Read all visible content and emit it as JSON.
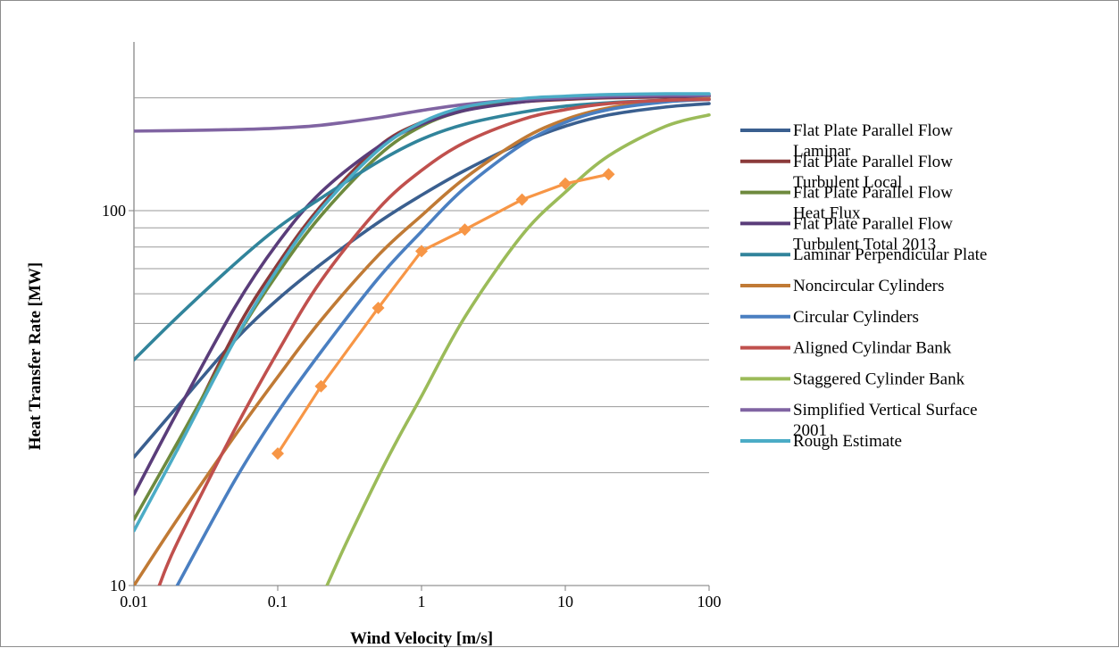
{
  "chart_data": {
    "type": "line",
    "title": "",
    "xlabel": "Wind Velocity [m/s]",
    "ylabel": "Heat Transfer Rate [MW]",
    "x_scale": "log",
    "y_scale": "log",
    "xlim": [
      0.01,
      100
    ],
    "ylim": [
      10,
      250
    ],
    "x_ticks": [
      {
        "value": 0.01,
        "label": "0.01"
      },
      {
        "value": 0.1,
        "label": "0.1"
      },
      {
        "value": 1,
        "label": "1"
      },
      {
        "value": 10,
        "label": "10"
      },
      {
        "value": 100,
        "label": "100"
      }
    ],
    "y_ticks": [
      {
        "value": 10,
        "label": "10"
      },
      {
        "value": 100,
        "label": "100"
      }
    ],
    "y_gridlines": [
      10,
      20,
      30,
      40,
      50,
      60,
      70,
      80,
      90,
      100,
      200
    ],
    "legend_position": "right",
    "series": [
      {
        "name": "Flat Plate Parallel Flow Laminar",
        "color": "#3a5f8f",
        "x": [
          0.01,
          0.02,
          0.05,
          0.1,
          0.2,
          0.5,
          1,
          2,
          5,
          10,
          20,
          50,
          100
        ],
        "y": [
          22,
          30,
          45,
          58,
          72,
          93,
          110,
          128,
          152,
          168,
          180,
          189,
          193
        ]
      },
      {
        "name": "Flat Plate Parallel Flow Turbulent Local",
        "color": "#8b3a3a",
        "x": [
          0.02,
          0.05,
          0.1,
          0.2,
          0.5,
          1,
          2,
          5,
          10,
          20,
          50,
          100
        ],
        "y": [
          23,
          47,
          72,
          103,
          148,
          172,
          186,
          195,
          198,
          200,
          201,
          202
        ]
      },
      {
        "name": "Flat Plate Parallel Flow Heat Flux",
        "color": "#6e8a3e",
        "x": [
          0.01,
          0.02,
          0.05,
          0.1,
          0.2,
          0.5,
          1,
          2,
          5,
          10,
          20,
          50,
          100
        ],
        "y": [
          15,
          24,
          45,
          68,
          97,
          140,
          168,
          185,
          196,
          200,
          202,
          203,
          203
        ]
      },
      {
        "name": "Flat Plate Parallel Flow Turbulent Total 2013",
        "color": "#5a3d7a",
        "x": [
          0.01,
          0.02,
          0.05,
          0.1,
          0.2,
          0.5,
          1,
          2,
          5,
          10,
          20,
          50,
          100
        ],
        "y": [
          17.5,
          29,
          55,
          82,
          112,
          148,
          170,
          185,
          195,
          199,
          201,
          202,
          202
        ]
      },
      {
        "name": "Laminar Perpendicular Plate",
        "color": "#31849b",
        "x": [
          0.01,
          0.02,
          0.05,
          0.1,
          0.2,
          0.5,
          1,
          2,
          5,
          10,
          20,
          50,
          100
        ],
        "y": [
          40,
          52,
          72,
          90,
          108,
          135,
          155,
          170,
          183,
          190,
          194,
          197,
          198
        ]
      },
      {
        "name": "Noncircular Cylinders",
        "color": "#c07a35",
        "x": [
          0.01,
          0.02,
          0.05,
          0.1,
          0.2,
          0.5,
          1,
          2,
          5,
          10,
          20,
          50,
          100
        ],
        "y": [
          10,
          15,
          25,
          36,
          51,
          76,
          97,
          122,
          155,
          175,
          188,
          196,
          199
        ]
      },
      {
        "name": "Circular Cylinders",
        "color": "#4a7fc1",
        "x": [
          0.02,
          0.05,
          0.1,
          0.2,
          0.5,
          1,
          2,
          5,
          10,
          20,
          50,
          100
        ],
        "y": [
          10,
          19,
          29,
          42,
          66,
          88,
          115,
          150,
          172,
          186,
          195,
          198
        ]
      },
      {
        "name": "Aligned Cylindar Bank",
        "color": "#c0504d",
        "x": [
          0.015,
          0.02,
          0.05,
          0.1,
          0.2,
          0.5,
          1,
          2,
          5,
          10,
          20,
          50,
          100
        ],
        "y": [
          10,
          13,
          26,
          42,
          65,
          101,
          128,
          152,
          175,
          186,
          193,
          197,
          198
        ]
      },
      {
        "name": "Staggered Cylinder Bank",
        "color": "#9bbb59",
        "x": [
          0.22,
          0.3,
          0.5,
          0.7,
          1,
          2,
          5,
          10,
          20,
          50,
          100
        ],
        "y": [
          10,
          13,
          19.5,
          25,
          32,
          52,
          86,
          112,
          140,
          168,
          180
        ]
      },
      {
        "name": "Simplified Vertical Surface 2001",
        "color": "#8064a2",
        "x": [
          0.01,
          0.02,
          0.05,
          0.1,
          0.2,
          0.5,
          1,
          2,
          5,
          10,
          20,
          50,
          100
        ],
        "y": [
          163,
          163.5,
          164.5,
          166,
          169,
          177,
          185,
          192,
          198,
          200,
          202,
          203,
          203
        ]
      },
      {
        "name": "Rough Estimate",
        "color": "#4bacc6",
        "x": [
          0.01,
          0.02,
          0.05,
          0.1,
          0.2,
          0.5,
          1,
          2,
          5,
          10,
          20,
          50,
          100
        ],
        "y": [
          14,
          23,
          45,
          70,
          101,
          145,
          172,
          189,
          199,
          202,
          204,
          205,
          205
        ]
      },
      {
        "name": "",
        "color": "#f79646",
        "markers": true,
        "x": [
          0.1,
          0.2,
          0.5,
          1,
          2,
          5,
          10,
          20
        ],
        "y": [
          22.5,
          34,
          55,
          78,
          89,
          107,
          118,
          125
        ]
      }
    ]
  }
}
